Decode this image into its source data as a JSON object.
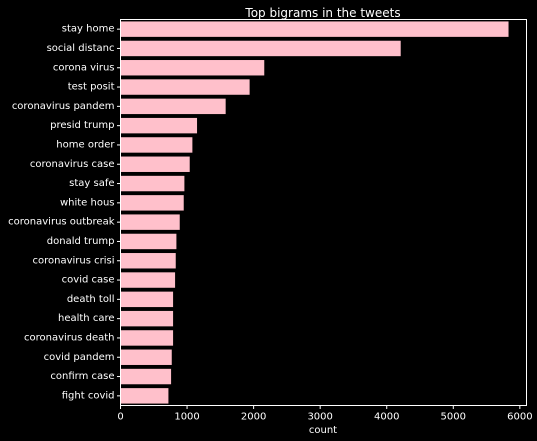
{
  "chart_data": {
    "type": "bar",
    "orientation": "horizontal",
    "title": "Top bigrams in the tweets",
    "xlabel": "count",
    "ylabel": "",
    "xlim": [
      0,
      6100
    ],
    "xticks": [
      0,
      1000,
      2000,
      3000,
      4000,
      5000,
      6000
    ],
    "categories": [
      "stay home",
      "social distanc",
      "corona virus",
      "test posit",
      "coronavirus pandem",
      "presid trump",
      "home order",
      "coronavirus case",
      "stay safe",
      "white hous",
      "coronavirus outbreak",
      "donald trump",
      "coronavirus crisi",
      "covid case",
      "death toll",
      "health care",
      "coronavirus death",
      "covid pandem",
      "confirm case",
      "fight covid"
    ],
    "values": [
      5830,
      4210,
      2160,
      1940,
      1580,
      1150,
      1080,
      1040,
      960,
      950,
      890,
      840,
      830,
      820,
      790,
      790,
      790,
      770,
      760,
      720
    ],
    "bar_color": "#ffc0cb",
    "background_color": "#000000",
    "frame_color": "#ffffff",
    "grid": false,
    "legend": "none"
  }
}
